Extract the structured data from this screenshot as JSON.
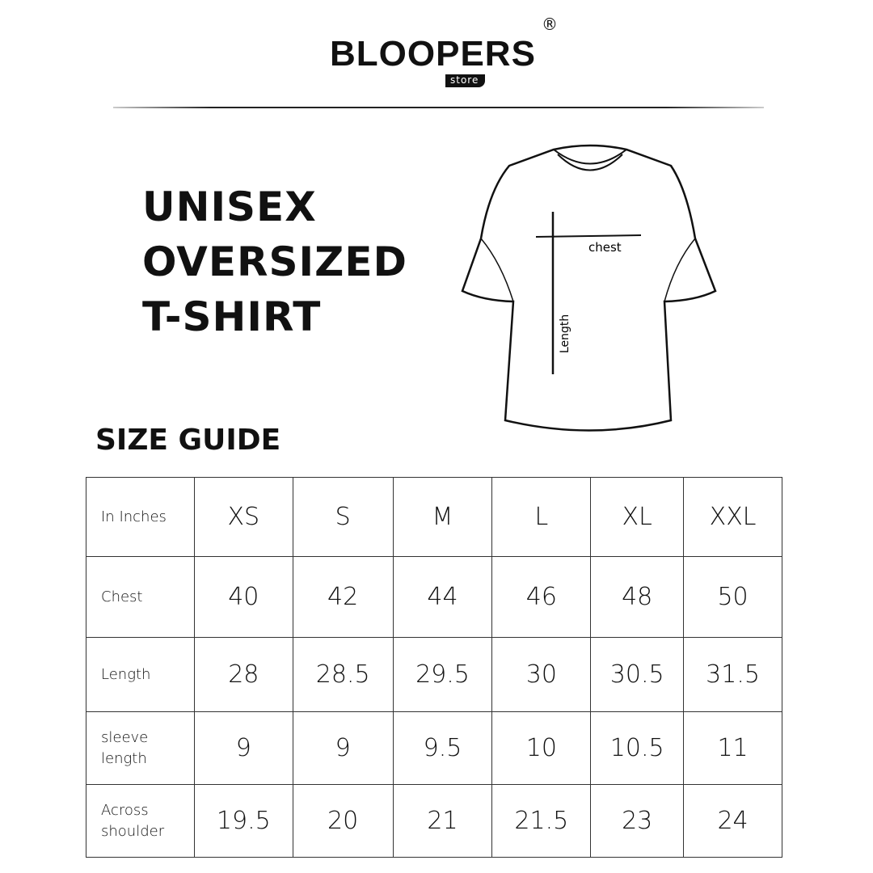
{
  "brand": {
    "name": "BLOOPERS",
    "sub": "store",
    "mark": "®"
  },
  "title_lines": [
    "UNISEX",
    "OVERSIZED",
    "T-SHIRT"
  ],
  "diagram": {
    "chest_label": "chest",
    "length_label": "Length"
  },
  "section_title": "SIZE GUIDE",
  "table": {
    "header": [
      "In Inches",
      "XS",
      "S",
      "M",
      "L",
      "XL",
      "XXL"
    ],
    "rows": [
      {
        "label": "Chest",
        "values": [
          "40",
          "42",
          "44",
          "46",
          "48",
          "50"
        ]
      },
      {
        "label": "Length",
        "values": [
          "28",
          "28.5",
          "29.5",
          "30",
          "30.5",
          "31.5"
        ]
      },
      {
        "label": "sleeve length",
        "values": [
          "9",
          "9",
          "9.5",
          "10",
          "10.5",
          "11"
        ]
      },
      {
        "label": "Across shoulder",
        "values": [
          "19.5",
          "20",
          "21",
          "21.5",
          "23",
          "24"
        ]
      }
    ]
  }
}
